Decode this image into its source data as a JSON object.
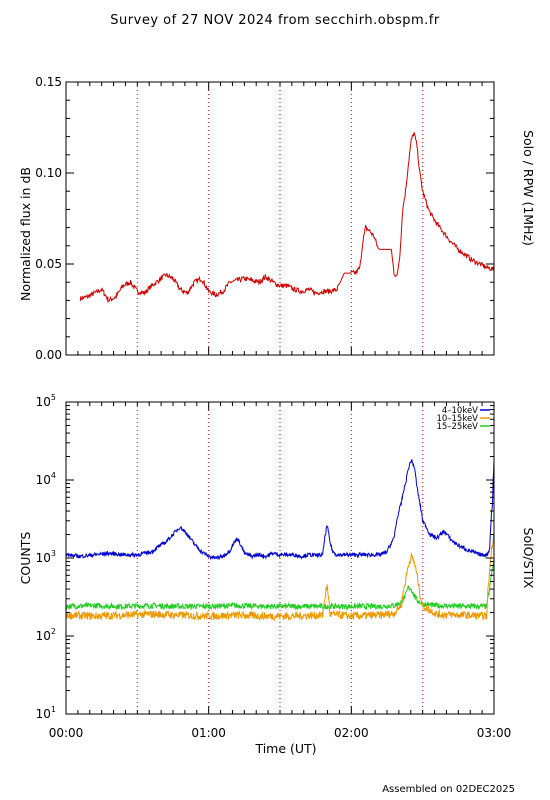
{
  "page": {
    "title": "Survey of 27 NOV 2024 from secchirh.obspm.fr",
    "footer": "Assembled on 02DEC2025"
  },
  "chart_data": [
    {
      "type": "line",
      "ylabel": "Normalized flux in dB",
      "right_label": "Solo / RPW (1MHz)",
      "xlim": [
        0,
        3
      ],
      "ylim": [
        0,
        0.15
      ],
      "y_ticks": [
        "0.00",
        "0.05",
        "0.10",
        "0.15"
      ],
      "y_tick_values": [
        0,
        0.05,
        0.1,
        0.15
      ],
      "x_dotted_lines": [
        0.5,
        1.0,
        1.5,
        2.0,
        2.5
      ],
      "series": [
        {
          "color": "#cc0000",
          "x": [
            0.1,
            0.15,
            0.2,
            0.25,
            0.3,
            0.35,
            0.4,
            0.45,
            0.5,
            0.55,
            0.6,
            0.65,
            0.7,
            0.75,
            0.8,
            0.85,
            0.9,
            0.95,
            1.0,
            1.05,
            1.1,
            1.15,
            1.2,
            1.25,
            1.3,
            1.35,
            1.4,
            1.45,
            1.5,
            1.55,
            1.6,
            1.65,
            1.7,
            1.75,
            1.8,
            1.85,
            1.9,
            1.95,
            2.0,
            2.03,
            2.06,
            2.08,
            2.1,
            2.13,
            2.16,
            2.19,
            2.22,
            2.25,
            2.28,
            2.3,
            2.32,
            2.34,
            2.36,
            2.38,
            2.4,
            2.42,
            2.44,
            2.46,
            2.48,
            2.5,
            2.52,
            2.54,
            2.56,
            2.6,
            2.65,
            2.7,
            2.75,
            2.8,
            2.85,
            2.9,
            2.95,
            3.0
          ],
          "y": [
            0.031,
            0.032,
            0.034,
            0.036,
            0.03,
            0.032,
            0.038,
            0.04,
            0.035,
            0.034,
            0.038,
            0.041,
            0.044,
            0.042,
            0.036,
            0.034,
            0.04,
            0.042,
            0.035,
            0.033,
            0.035,
            0.04,
            0.041,
            0.042,
            0.041,
            0.04,
            0.043,
            0.04,
            0.038,
            0.038,
            0.036,
            0.035,
            0.036,
            0.034,
            0.035,
            0.035,
            0.036,
            0.045,
            0.045,
            0.045,
            0.048,
            0.062,
            0.07,
            0.068,
            0.065,
            0.058,
            0.058,
            0.058,
            0.058,
            0.045,
            0.043,
            0.055,
            0.08,
            0.09,
            0.105,
            0.118,
            0.122,
            0.115,
            0.1,
            0.09,
            0.085,
            0.08,
            0.077,
            0.072,
            0.067,
            0.062,
            0.058,
            0.055,
            0.052,
            0.05,
            0.048,
            0.047
          ]
        }
      ]
    },
    {
      "type": "line",
      "yscale": "log",
      "ylabel": "COUNTS",
      "right_label": "SolO/STIX",
      "xlabel": "Time (UT)",
      "xlim": [
        0,
        3
      ],
      "ylim": [
        10,
        100000
      ],
      "x_ticks": [
        "00:00",
        "01:00",
        "02:00",
        "03:00"
      ],
      "x_tick_values": [
        0,
        1,
        2,
        3
      ],
      "x_dotted_lines": [
        0.5,
        1.0,
        1.5,
        2.0,
        2.5
      ],
      "y_ticks": [
        {
          "base": "10",
          "exp": "1",
          "value": 10
        },
        {
          "base": "10",
          "exp": "2",
          "value": 100
        },
        {
          "base": "10",
          "exp": "3",
          "value": 1000
        },
        {
          "base": "10",
          "exp": "4",
          "value": 10000
        },
        {
          "base": "10",
          "exp": "5",
          "value": 100000
        }
      ],
      "legend_position": "top-right",
      "series": [
        {
          "name": "4–10keV",
          "color": "#0000cc",
          "x": [
            0.0,
            0.1,
            0.2,
            0.3,
            0.4,
            0.5,
            0.6,
            0.7,
            0.75,
            0.8,
            0.85,
            0.9,
            0.95,
            1.0,
            1.05,
            1.1,
            1.15,
            1.2,
            1.25,
            1.3,
            1.35,
            1.4,
            1.45,
            1.5,
            1.55,
            1.6,
            1.65,
            1.7,
            1.75,
            1.8,
            1.83,
            1.85,
            1.87,
            1.9,
            2.0,
            2.1,
            2.2,
            2.25,
            2.3,
            2.35,
            2.38,
            2.4,
            2.42,
            2.44,
            2.46,
            2.48,
            2.5,
            2.55,
            2.6,
            2.65,
            2.7,
            2.75,
            2.8,
            2.85,
            2.9,
            2.95,
            2.97,
            2.99,
            3.0
          ],
          "y": [
            1100,
            1050,
            1100,
            1150,
            1100,
            1100,
            1200,
            1600,
            2000,
            2500,
            2000,
            1500,
            1200,
            1050,
            1000,
            1050,
            1250,
            1800,
            1150,
            1050,
            1100,
            1050,
            1150,
            1100,
            1100,
            1100,
            1050,
            1100,
            1080,
            1100,
            2600,
            1600,
            1200,
            1100,
            1100,
            1100,
            1100,
            1200,
            1800,
            5000,
            9000,
            14000,
            18000,
            15000,
            8000,
            5000,
            3000,
            2000,
            1800,
            2200,
            1700,
            1450,
            1300,
            1200,
            1100,
            1100,
            1300,
            5000,
            17000
          ]
        },
        {
          "name": "10–15keV",
          "color": "#ee9900",
          "x": [
            0.0,
            0.2,
            0.4,
            0.6,
            0.8,
            1.0,
            1.2,
            1.4,
            1.6,
            1.8,
            1.83,
            1.85,
            2.0,
            2.2,
            2.3,
            2.35,
            2.38,
            2.4,
            2.42,
            2.44,
            2.46,
            2.48,
            2.5,
            2.6,
            2.8,
            2.95,
            2.97,
            3.0
          ],
          "y": [
            185,
            180,
            185,
            190,
            185,
            180,
            185,
            180,
            180,
            185,
            440,
            190,
            180,
            185,
            195,
            250,
            500,
            800,
            1050,
            900,
            600,
            350,
            240,
            190,
            185,
            180,
            700,
            2000
          ]
        },
        {
          "name": "15–25keV",
          "color": "#22cc22",
          "x": [
            0.0,
            0.2,
            0.4,
            0.6,
            0.8,
            1.0,
            1.2,
            1.4,
            1.6,
            1.8,
            2.0,
            2.2,
            2.3,
            2.35,
            2.38,
            2.4,
            2.42,
            2.44,
            2.46,
            2.48,
            2.5,
            2.6,
            2.8,
            2.95,
            2.97,
            3.0
          ],
          "y": [
            240,
            245,
            240,
            245,
            240,
            240,
            245,
            240,
            240,
            240,
            240,
            240,
            245,
            270,
            330,
            420,
            400,
            330,
            290,
            270,
            255,
            245,
            240,
            240,
            400,
            900
          ]
        }
      ]
    }
  ]
}
